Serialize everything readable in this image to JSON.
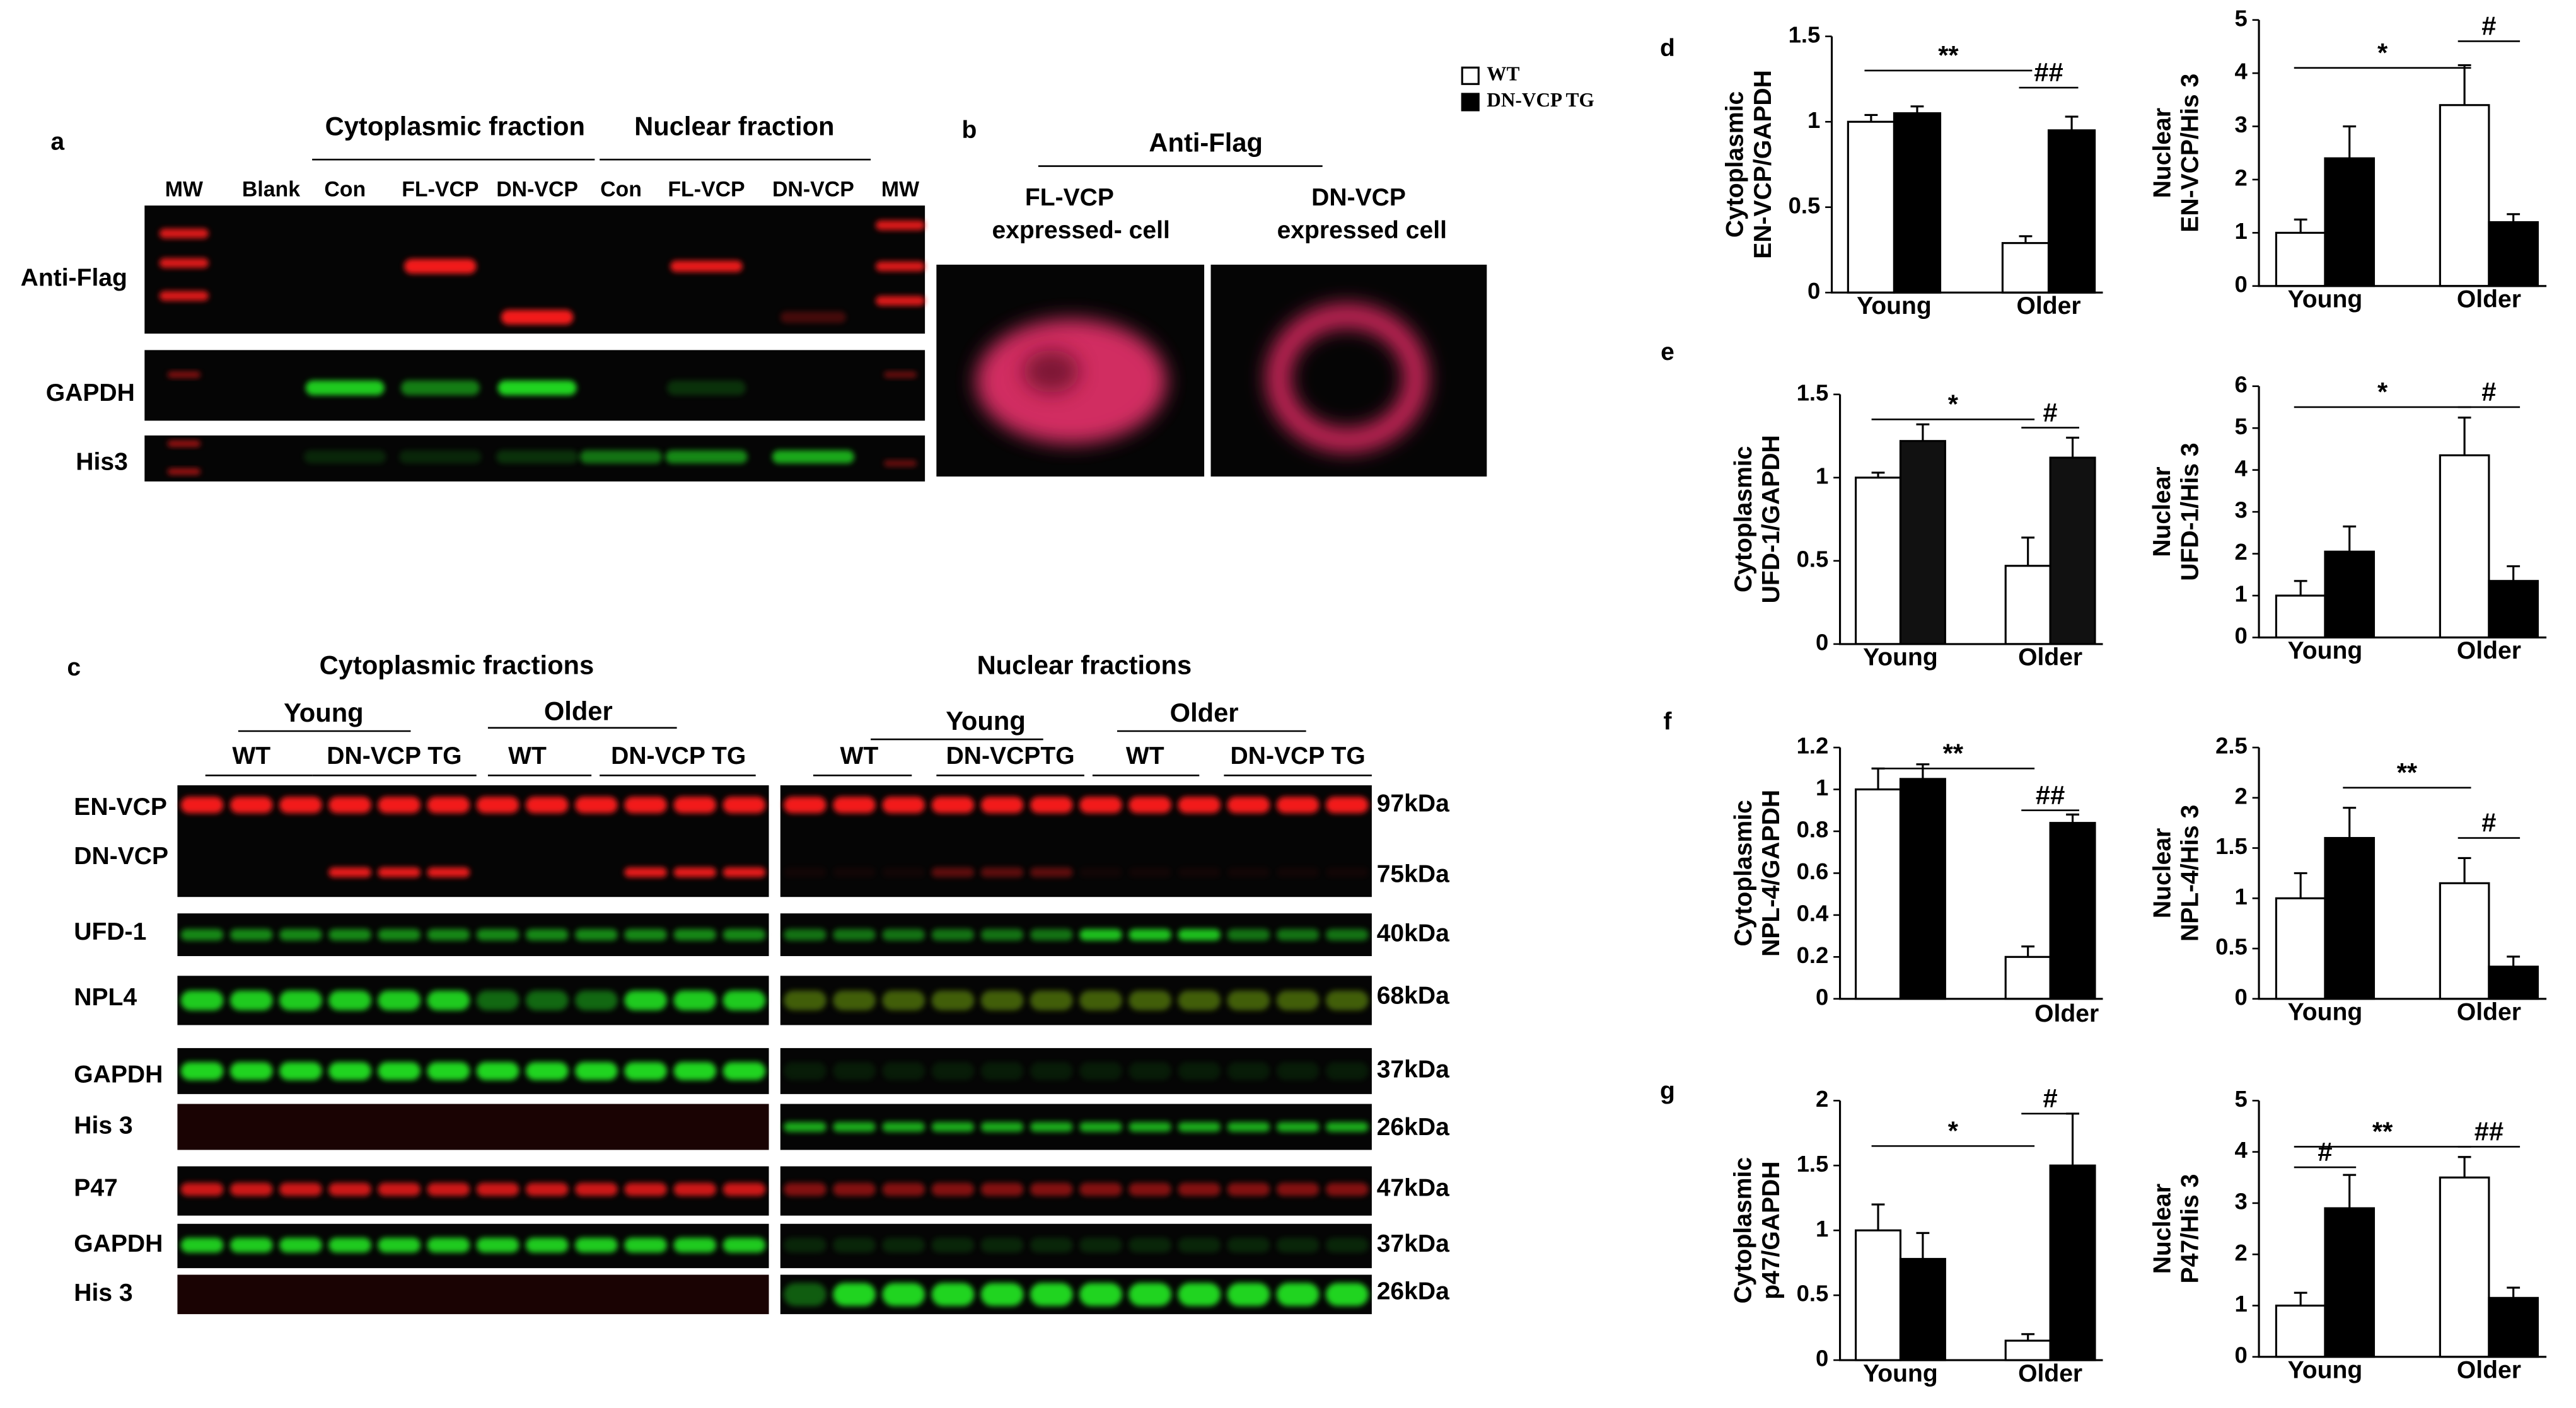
{
  "legend": [
    {
      "name": "WT",
      "color": "#ffffff"
    },
    {
      "name": "DN-VCP TG",
      "color": "#000000"
    }
  ],
  "panels": {
    "a": {
      "letter": "a",
      "fractions": [
        "Cytoplasmic fraction",
        "Nuclear fraction"
      ],
      "lanes": [
        "MW",
        "Blank",
        "Con",
        "FL-VCP",
        "DN-VCP",
        "Con",
        "FL-VCP",
        "DN-VCP",
        "MW"
      ],
      "rows": [
        "Anti-Flag",
        "GAPDH",
        "His3"
      ]
    },
    "b": {
      "letter": "b",
      "title": "Anti-Flag",
      "cells": [
        [
          "FL-VCP",
          "expressed- cell"
        ],
        [
          "DN-VCP",
          "expressed cell"
        ]
      ]
    },
    "c": {
      "letter": "c",
      "fractions": [
        "Cytoplasmic fractions",
        "Nuclear fractions"
      ],
      "ages": [
        "Young",
        "Older",
        "Young",
        "Older"
      ],
      "groups": [
        "WT",
        "DN-VCP TG",
        "WT",
        "DN-VCP TG",
        "WT",
        "DN-VCPTG",
        "WT",
        "DN-VCP TG"
      ],
      "rows": [
        "EN-VCP",
        "DN-VCP",
        "UFD-1",
        "NPL4",
        "GAPDH",
        "His 3",
        "P47",
        "GAPDH",
        "His 3"
      ],
      "sizes": [
        "97kDa",
        "75kDa",
        "40kDa",
        "68kDa",
        "37kDa",
        "26kDa",
        "47kDa",
        "37kDa",
        "26kDa"
      ]
    },
    "letters": [
      "d",
      "e",
      "f",
      "g"
    ]
  },
  "chart_data": [
    {
      "type": "bar",
      "ylabel": [
        "Cytoplasmic",
        "EN-VCP/GAPDH"
      ],
      "categories": [
        "Young",
        "Older"
      ],
      "series": [
        {
          "color": "#ffffff",
          "values": [
            1.0,
            0.29
          ],
          "errors": [
            0.04,
            0.04
          ]
        },
        {
          "color": "#000000",
          "values": [
            1.05,
            0.95
          ],
          "errors": [
            0.04,
            0.08
          ]
        }
      ],
      "ylim": [
        0,
        1.5
      ],
      "yticks": [
        0,
        0.5,
        1,
        1.5
      ],
      "annotations": [
        {
          "label": "**",
          "y": 1.3,
          "bars": [
            0,
            2
          ]
        },
        {
          "label": "##",
          "y": 1.2,
          "bars": [
            2,
            3
          ]
        }
      ]
    },
    {
      "type": "bar",
      "ylabel": [
        "Nuclear",
        "EN-VCP/His 3"
      ],
      "categories": [
        "Young",
        "Older"
      ],
      "series": [
        {
          "color": "#ffffff",
          "values": [
            1.0,
            3.4
          ],
          "errors": [
            0.25,
            0.75
          ]
        },
        {
          "color": "#000000",
          "values": [
            2.4,
            1.2
          ],
          "errors": [
            0.6,
            0.15
          ]
        }
      ],
      "ylim": [
        0,
        5
      ],
      "yticks": [
        0,
        1,
        2,
        3,
        4,
        5
      ],
      "annotations": [
        {
          "label": "*",
          "y": 4.1,
          "bars": [
            0,
            2
          ]
        },
        {
          "label": "#",
          "y": 4.6,
          "bars": [
            2,
            3
          ]
        }
      ]
    },
    {
      "type": "bar",
      "ylabel": [
        "Cytoplasmic",
        "UFD-1/GAPDH"
      ],
      "categories": [
        "Young",
        "Older"
      ],
      "series": [
        {
          "color": "#ffffff",
          "values": [
            1.0,
            0.47
          ],
          "errors": [
            0.03,
            0.17
          ]
        },
        {
          "color": "#111111",
          "values": [
            1.22,
            1.12
          ],
          "errors": [
            0.1,
            0.12
          ]
        }
      ],
      "ylim": [
        0,
        1.5
      ],
      "yticks": [
        0,
        0.5,
        1,
        1.5
      ],
      "annotations": [
        {
          "label": "*",
          "y": 1.35,
          "bars": [
            0,
            2
          ]
        },
        {
          "label": "#",
          "y": 1.3,
          "bars": [
            2,
            3
          ]
        }
      ]
    },
    {
      "type": "bar",
      "ylabel": [
        "Nuclear",
        "UFD-1/His 3"
      ],
      "categories": [
        "Young",
        "Older"
      ],
      "series": [
        {
          "color": "#ffffff",
          "values": [
            1.0,
            4.35
          ],
          "errors": [
            0.35,
            0.9
          ]
        },
        {
          "color": "#000000",
          "values": [
            2.05,
            1.35
          ],
          "errors": [
            0.6,
            0.35
          ]
        }
      ],
      "ylim": [
        0,
        6
      ],
      "yticks": [
        0,
        1,
        2,
        3,
        4,
        5,
        6
      ],
      "annotations": [
        {
          "label": "*",
          "y": 5.5,
          "bars": [
            0,
            2
          ]
        },
        {
          "label": "#",
          "y": 5.5,
          "bars": [
            2,
            3
          ]
        }
      ]
    },
    {
      "type": "bar",
      "ylabel": [
        "Cytoplasmic",
        "NPL-4/GAPDH"
      ],
      "categories": [
        null,
        "Older"
      ],
      "series": [
        {
          "color": "#ffffff",
          "values": [
            1.0,
            0.2
          ],
          "errors": [
            0.1,
            0.05
          ]
        },
        {
          "color": "#000000",
          "values": [
            1.05,
            0.84
          ],
          "errors": [
            0.07,
            0.04
          ]
        }
      ],
      "ylim": [
        0,
        1.2
      ],
      "yticks": [
        0,
        0.2,
        0.4,
        0.6,
        0.8,
        1,
        1.2
      ],
      "annotations": [
        {
          "label": "**",
          "y": 1.1,
          "bars": [
            0,
            2
          ]
        },
        {
          "label": "##",
          "y": 0.9,
          "bars": [
            2,
            3
          ]
        }
      ]
    },
    {
      "type": "bar",
      "ylabel": [
        "Nuclear",
        "NPL-4/His 3"
      ],
      "categories": [
        "Young",
        "Older"
      ],
      "series": [
        {
          "color": "#ffffff",
          "values": [
            1.0,
            1.15
          ],
          "errors": [
            0.25,
            0.25
          ]
        },
        {
          "color": "#000000",
          "values": [
            1.6,
            0.32
          ],
          "errors": [
            0.3,
            0.1
          ]
        }
      ],
      "ylim": [
        0,
        2.5
      ],
      "yticks": [
        0,
        0.5,
        1,
        1.5,
        2,
        2.5
      ],
      "annotations": [
        {
          "label": "**",
          "y": 2.1,
          "bars": [
            1,
            2
          ]
        },
        {
          "label": "#",
          "y": 1.6,
          "bars": [
            2,
            3
          ]
        }
      ]
    },
    {
      "type": "bar",
      "ylabel": [
        "Cytoplasmic",
        "p47/GAPDH"
      ],
      "categories": [
        "Young",
        "Older"
      ],
      "series": [
        {
          "color": "#ffffff",
          "values": [
            1.0,
            0.15
          ],
          "errors": [
            0.2,
            0.05
          ]
        },
        {
          "color": "#000000",
          "values": [
            0.78,
            1.5
          ],
          "errors": [
            0.2,
            0.4
          ]
        }
      ],
      "ylim": [
        0,
        2
      ],
      "yticks": [
        0,
        0.5,
        1,
        1.5,
        2
      ],
      "annotations": [
        {
          "label": "*",
          "y": 1.65,
          "bars": [
            0,
            2
          ]
        },
        {
          "label": "#",
          "y": 1.9,
          "bars": [
            2,
            3
          ]
        }
      ]
    },
    {
      "type": "bar",
      "ylabel": [
        "Nuclear",
        "P47/His 3"
      ],
      "categories": [
        "Young",
        "Older"
      ],
      "series": [
        {
          "color": "#ffffff",
          "values": [
            1.0,
            3.5
          ],
          "errors": [
            0.25,
            0.4
          ]
        },
        {
          "color": "#000000",
          "values": [
            2.9,
            1.15
          ],
          "errors": [
            0.65,
            0.2
          ]
        }
      ],
      "ylim": [
        0,
        5
      ],
      "yticks": [
        0,
        1,
        2,
        3,
        4,
        5
      ],
      "annotations": [
        {
          "label": "#",
          "y": 3.7,
          "bars": [
            0,
            1
          ]
        },
        {
          "label": "**",
          "y": 4.1,
          "bars": [
            0,
            2
          ]
        },
        {
          "label": "##",
          "y": 4.1,
          "bars": [
            2,
            3
          ]
        }
      ]
    }
  ]
}
